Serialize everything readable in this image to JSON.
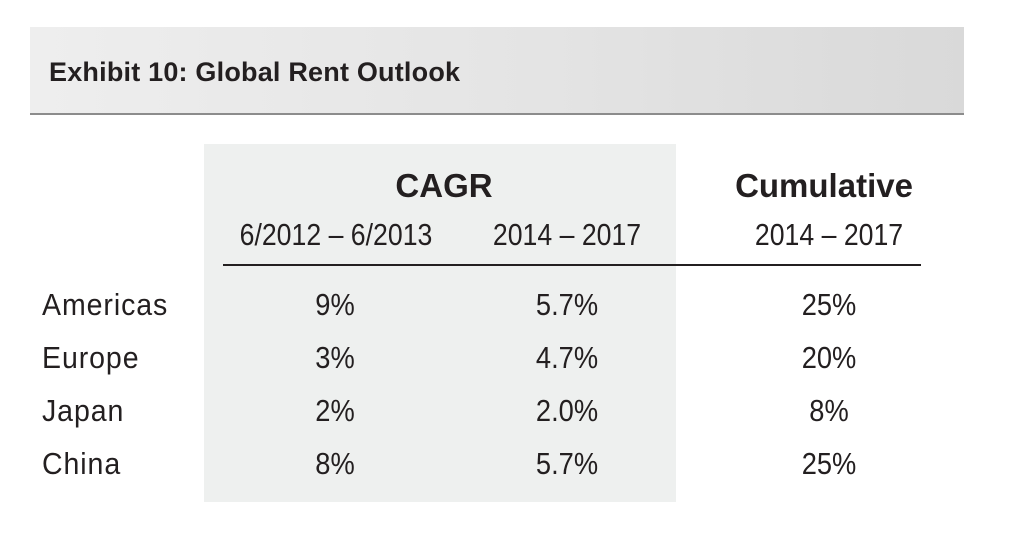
{
  "title": "Exhibit 10: Global Rent Outlook",
  "group_headers": {
    "cagr": "CAGR",
    "cumulative": "Cumulative"
  },
  "column_headers": [
    "6/2012 – 6/2013",
    "2014 – 2017",
    "2014 – 2017"
  ],
  "rows": [
    {
      "region": "Americas",
      "values": [
        "9%",
        "5.7%",
        "25%"
      ]
    },
    {
      "region": "Europe",
      "values": [
        "3%",
        "4.7%",
        "20%"
      ]
    },
    {
      "region": "Japan",
      "values": [
        "2%",
        "2.0%",
        "8%"
      ]
    },
    {
      "region": "China",
      "values": [
        "8%",
        "5.7%",
        "25%"
      ]
    }
  ]
}
